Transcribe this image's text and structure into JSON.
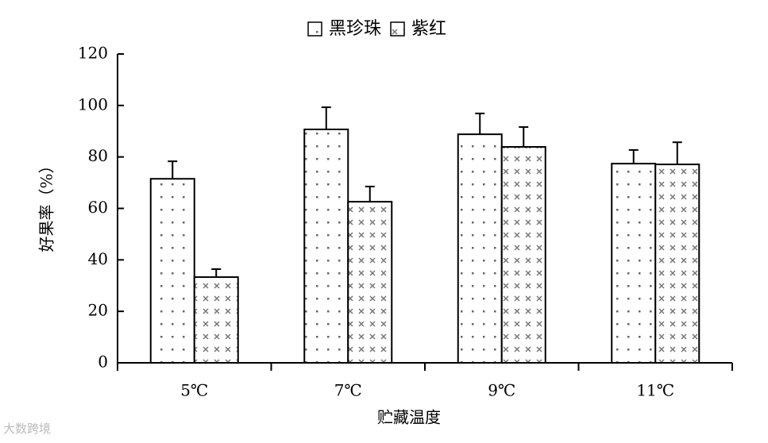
{
  "chart_data": {
    "type": "bar",
    "xlabel": "贮藏温度",
    "ylabel": "好果率（%）",
    "categories": [
      "5℃",
      "7℃",
      "9℃",
      "11℃"
    ],
    "series": [
      {
        "name": "黑珍珠",
        "pattern": "dots",
        "values": [
          71.5,
          90.7,
          88.8,
          77.4
        ],
        "errors": [
          6.8,
          8.6,
          8.1,
          5.3
        ]
      },
      {
        "name": "紫红",
        "pattern": "cross",
        "values": [
          33.3,
          62.6,
          83.9,
          77.1
        ],
        "errors": [
          3.1,
          5.9,
          7.7,
          8.6
        ]
      }
    ],
    "ylim": [
      0,
      120
    ],
    "yticks": [
      0,
      20,
      40,
      60,
      80,
      100,
      120
    ],
    "legend": "top",
    "watermark": "大数跨境"
  }
}
